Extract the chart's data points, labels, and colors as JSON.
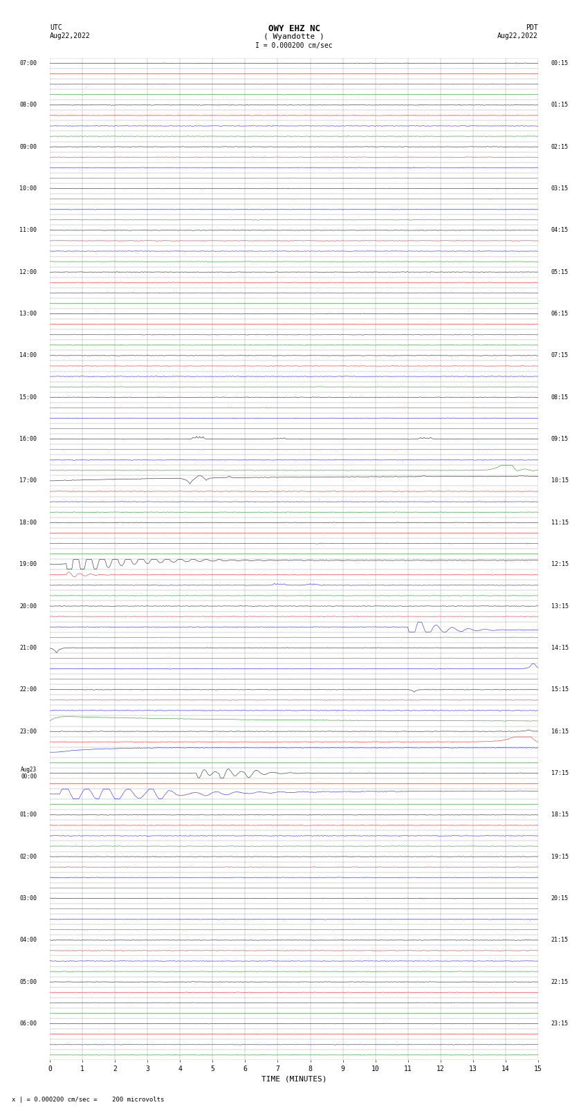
{
  "title_line1": "OWY EHZ NC",
  "title_line2": "( Wyandotte )",
  "scale_label": "I = 0.000200 cm/sec",
  "utc_label": "UTC\nAug22,2022",
  "pdt_label": "PDT\nAug22,2022",
  "bottom_note": "x | = 0.000200 cm/sec =    200 microvolts",
  "xlabel": "TIME (MINUTES)",
  "xlim": [
    0,
    15
  ],
  "xticks": [
    0,
    1,
    2,
    3,
    4,
    5,
    6,
    7,
    8,
    9,
    10,
    11,
    12,
    13,
    14,
    15
  ],
  "bg_color": "#ffffff",
  "grid_color": "#888888",
  "trace_colors": [
    "black",
    "red",
    "blue",
    "green"
  ],
  "noise_scale": 0.025,
  "event_seed": 42
}
